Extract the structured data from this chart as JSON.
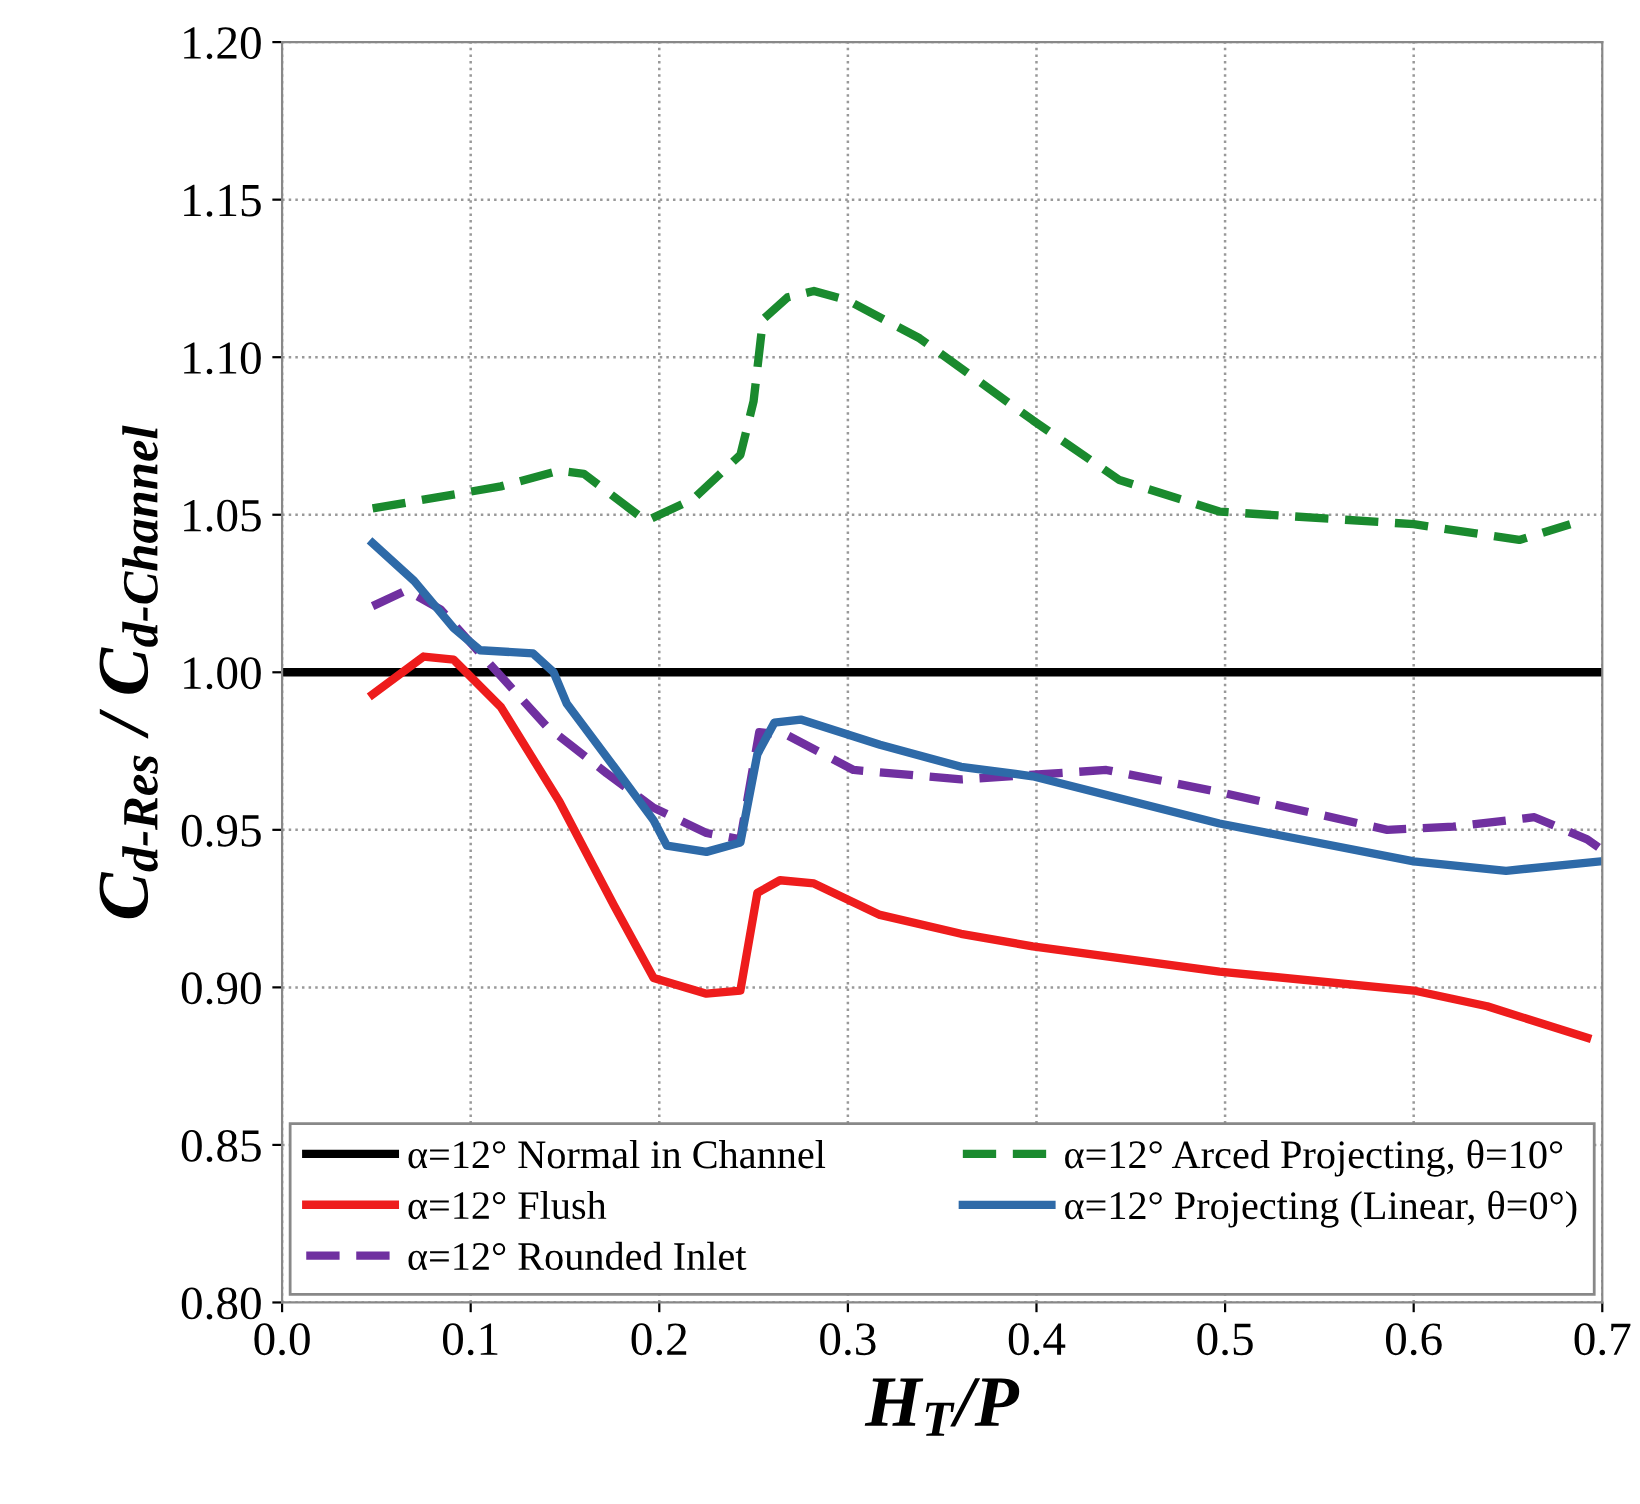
{
  "chart_data": {
    "type": "line",
    "xlabel": "H$_{T}$/P",
    "ylabel": "C$_{d-Res}$ / C$_{d-Channel}$",
    "xlim": [
      0.0,
      0.7
    ],
    "ylim": [
      0.8,
      1.2
    ],
    "xticks": [
      {
        "value": 0.0,
        "label": "0.0"
      },
      0.1,
      0.2,
      0.3,
      0.4,
      0.5,
      0.6,
      0.7
    ],
    "yticks": [
      {
        "value": 0.8,
        "label": "0.80"
      },
      0.85,
      {
        "value": 0.9,
        "label": "0.90"
      },
      0.95,
      {
        "value": 1.0,
        "label": "1.00"
      },
      1.05,
      {
        "value": 1.1,
        "label": "1.10"
      },
      1.15,
      {
        "value": 1.2,
        "label": "1.20"
      }
    ],
    "grid": true,
    "legend": "bottom",
    "series": [
      {
        "name": "α=12° Normal in Channel",
        "color": "#000000",
        "line_style": "solid",
        "x": [
          0.0,
          0.7
        ],
        "values": [
          1.0,
          1.0
        ]
      },
      {
        "name": "α=12° Flush",
        "color": "#ee1c1c",
        "line_style": "solid",
        "x": [
          0.048,
          0.075,
          0.091,
          0.116,
          0.147,
          0.176,
          0.197,
          0.225,
          0.243,
          0.252,
          0.264,
          0.282,
          0.317,
          0.36,
          0.398,
          0.497,
          0.6,
          0.639,
          0.692
        ],
        "values": [
          0.993,
          1.005,
          1.004,
          0.989,
          0.959,
          0.926,
          0.903,
          0.898,
          0.899,
          0.93,
          0.934,
          0.933,
          0.923,
          0.917,
          0.913,
          0.905,
          0.899,
          0.894,
          0.884
        ]
      },
      {
        "name": "α=12° Rounded Inlet",
        "color": "#7030a0",
        "line_style": "dashed",
        "x": [
          0.048,
          0.066,
          0.084,
          0.105,
          0.14,
          0.172,
          0.197,
          0.225,
          0.243,
          0.253,
          0.268,
          0.303,
          0.36,
          0.437,
          0.497,
          0.586,
          0.621,
          0.664,
          0.692,
          0.699
        ],
        "values": [
          1.021,
          1.026,
          1.02,
          1.006,
          0.983,
          0.968,
          0.957,
          0.949,
          0.947,
          0.981,
          0.98,
          0.969,
          0.966,
          0.969,
          0.962,
          0.95,
          0.951,
          0.954,
          0.947,
          0.944
        ]
      },
      {
        "name": "α=12° Arced Projecting, θ=10°",
        "color": "#1a8a2e",
        "line_style": "dashed",
        "x": [
          0.048,
          0.116,
          0.147,
          0.16,
          0.193,
          0.218,
          0.243,
          0.25,
          0.255,
          0.268,
          0.282,
          0.3,
          0.338,
          0.398,
          0.444,
          0.497,
          0.6,
          0.656,
          0.683
        ],
        "values": [
          1.052,
          1.059,
          1.064,
          1.063,
          1.048,
          1.055,
          1.069,
          1.086,
          1.112,
          1.119,
          1.121,
          1.118,
          1.106,
          1.08,
          1.061,
          1.051,
          1.047,
          1.042,
          1.047
        ]
      },
      {
        "name": "α=12° Projecting (Linear, θ=0°)",
        "color": "#2e6aa8",
        "line_style": "solid",
        "x": [
          0.048,
          0.07,
          0.091,
          0.105,
          0.133,
          0.144,
          0.151,
          0.176,
          0.197,
          0.204,
          0.225,
          0.243,
          0.252,
          0.261,
          0.275,
          0.317,
          0.36,
          0.398,
          0.497,
          0.6,
          0.649,
          0.699
        ],
        "values": [
          1.041,
          1.029,
          1.014,
          1.007,
          1.006,
          1.0,
          0.99,
          0.97,
          0.953,
          0.945,
          0.943,
          0.946,
          0.974,
          0.984,
          0.985,
          0.977,
          0.97,
          0.967,
          0.952,
          0.94,
          0.937,
          0.94
        ]
      }
    ]
  }
}
